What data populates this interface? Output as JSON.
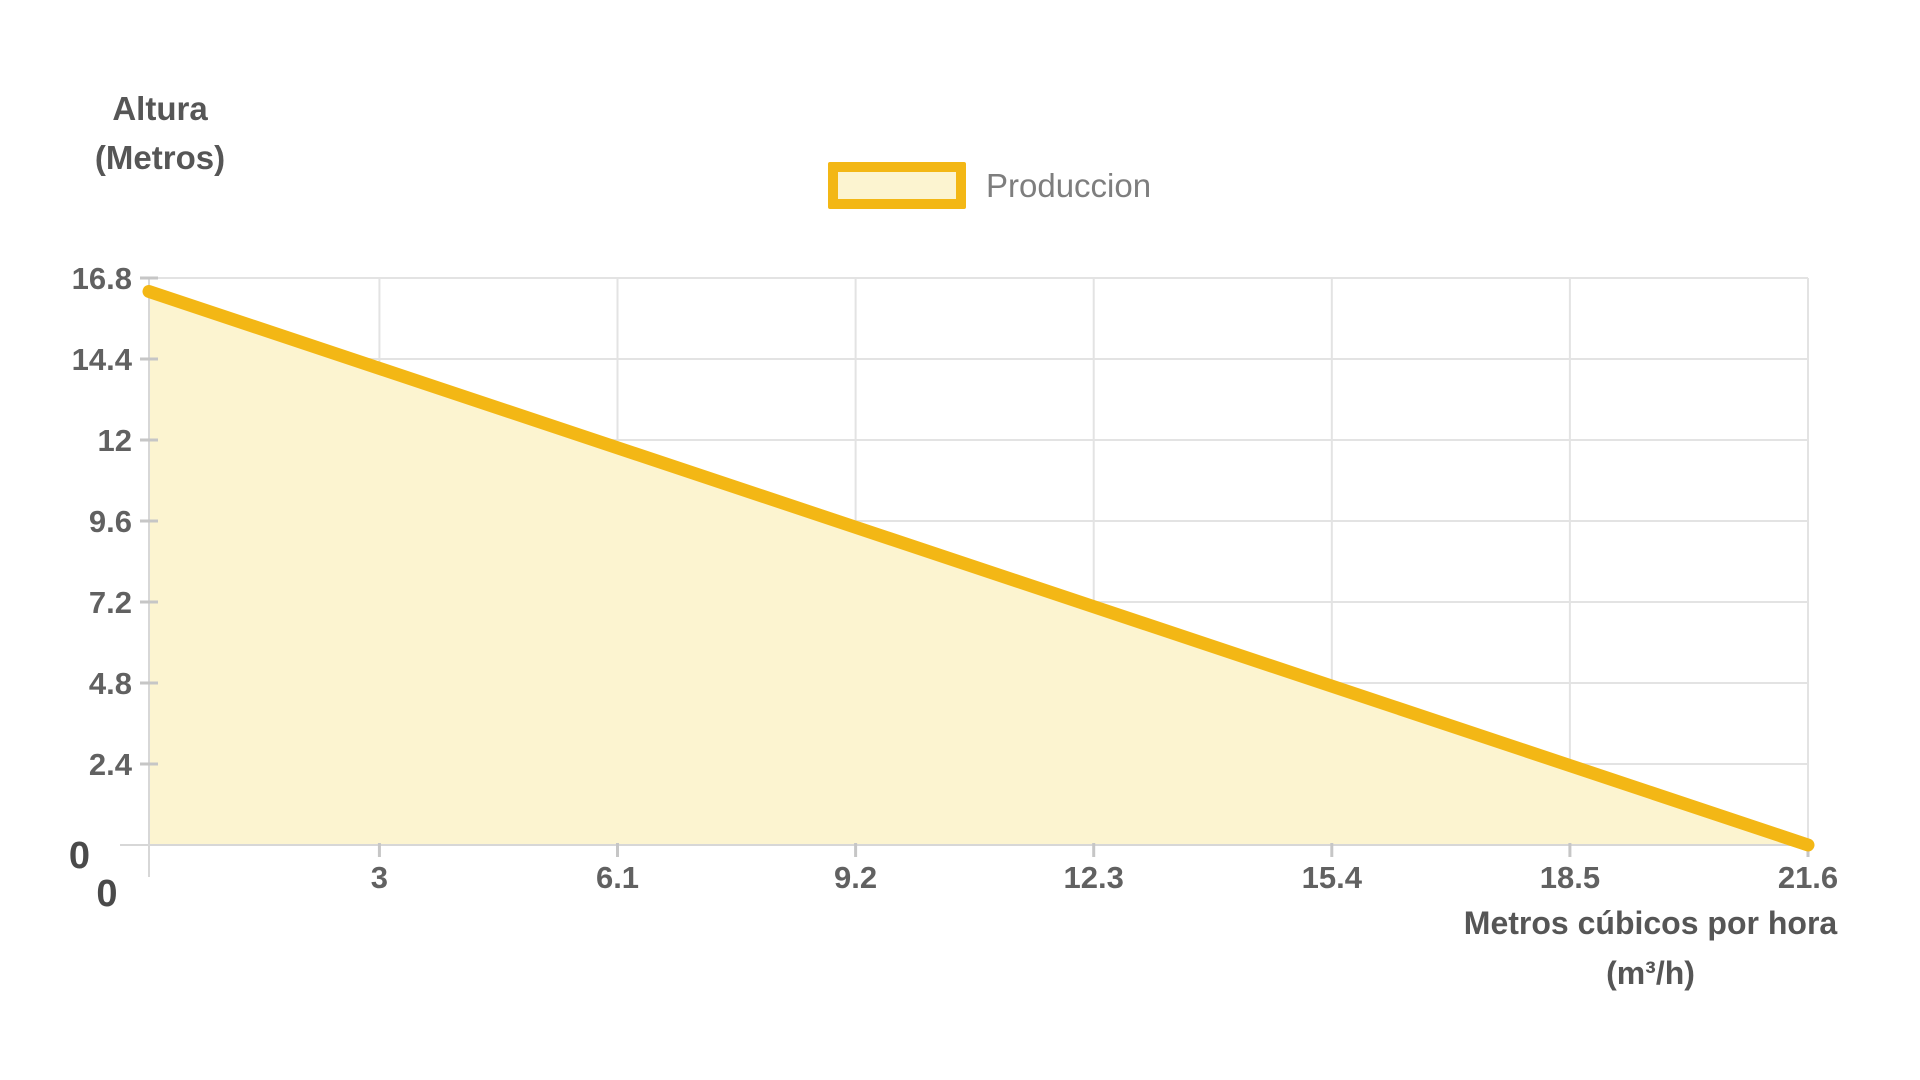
{
  "axes": {
    "y_title": {
      "line1": "Altura",
      "line2": "(Metros)"
    },
    "x_title": {
      "line1": "Metros cúbicos por hora",
      "line2": "(m³/h)"
    },
    "origin": {
      "y_zero": "0",
      "x_zero": "0"
    }
  },
  "legend": {
    "label": "Produccion"
  },
  "colors": {
    "background": "#ffffff",
    "line": "#f3b715",
    "fill": "#fcf4d0",
    "grid": "#e3e3e3",
    "axis_line": "#d7d7d7",
    "tick_mark": "#c6c6c6",
    "tick_text": "#616161",
    "origin_text": "#4a4a4a",
    "axis_title": "#565656",
    "legend_text": "#7e7e7e"
  },
  "chart_data": {
    "type": "area",
    "title": "",
    "xlabel": "Metros cúbicos por hora (m³/h)",
    "ylabel": "Altura (Metros)",
    "legend_entries": [
      "Produccion"
    ],
    "legend_position": "top-center",
    "grid": true,
    "xlim": [
      0,
      21.6
    ],
    "ylim": [
      0,
      16.8
    ],
    "x_ticks": [
      3,
      6.1,
      9.2,
      12.3,
      15.4,
      18.5,
      21.6
    ],
    "x_tick_labels": [
      "3",
      "6.1",
      "9.2",
      "12.3",
      "15.4",
      "18.5",
      "21.6"
    ],
    "y_ticks": [
      2.4,
      4.8,
      7.2,
      9.6,
      12,
      14.4,
      16.8
    ],
    "y_tick_labels": [
      "2.4",
      "4.8",
      "7.2",
      "9.6",
      "12",
      "14.4",
      "16.8"
    ],
    "series": [
      {
        "name": "Produccion",
        "points": [
          {
            "x": 0,
            "y": 16.4
          },
          {
            "x": 21.6,
            "y": 0
          }
        ]
      }
    ]
  }
}
